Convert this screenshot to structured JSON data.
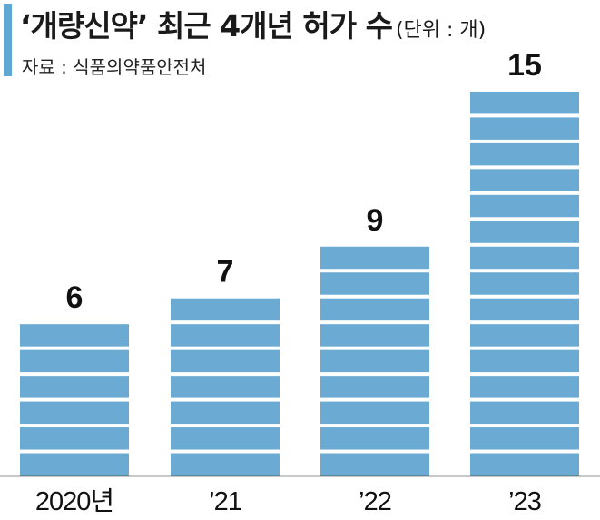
{
  "header": {
    "title": "‘개량신약’ 최근 4개년 허가 수",
    "unit": "(단위 : 개)",
    "source": "자료 : 식품의약품안전처"
  },
  "colors": {
    "bar": "#6aaad3",
    "accent": "#5fa8d3",
    "axis": "#222222"
  },
  "chart_data": {
    "type": "bar",
    "title": "‘개량신약’ 최근 4개년 허가 수",
    "unit": "(단위 : 개)",
    "categories": [
      "2020년",
      "’21",
      "’22",
      "’23"
    ],
    "values": [
      6,
      7,
      9,
      15
    ],
    "data_labels": [
      "6",
      "7",
      "9",
      "15"
    ],
    "ylim": [
      0,
      15
    ],
    "grid": false,
    "legend": "none",
    "bar_style": "stacked-unit-blocks"
  }
}
